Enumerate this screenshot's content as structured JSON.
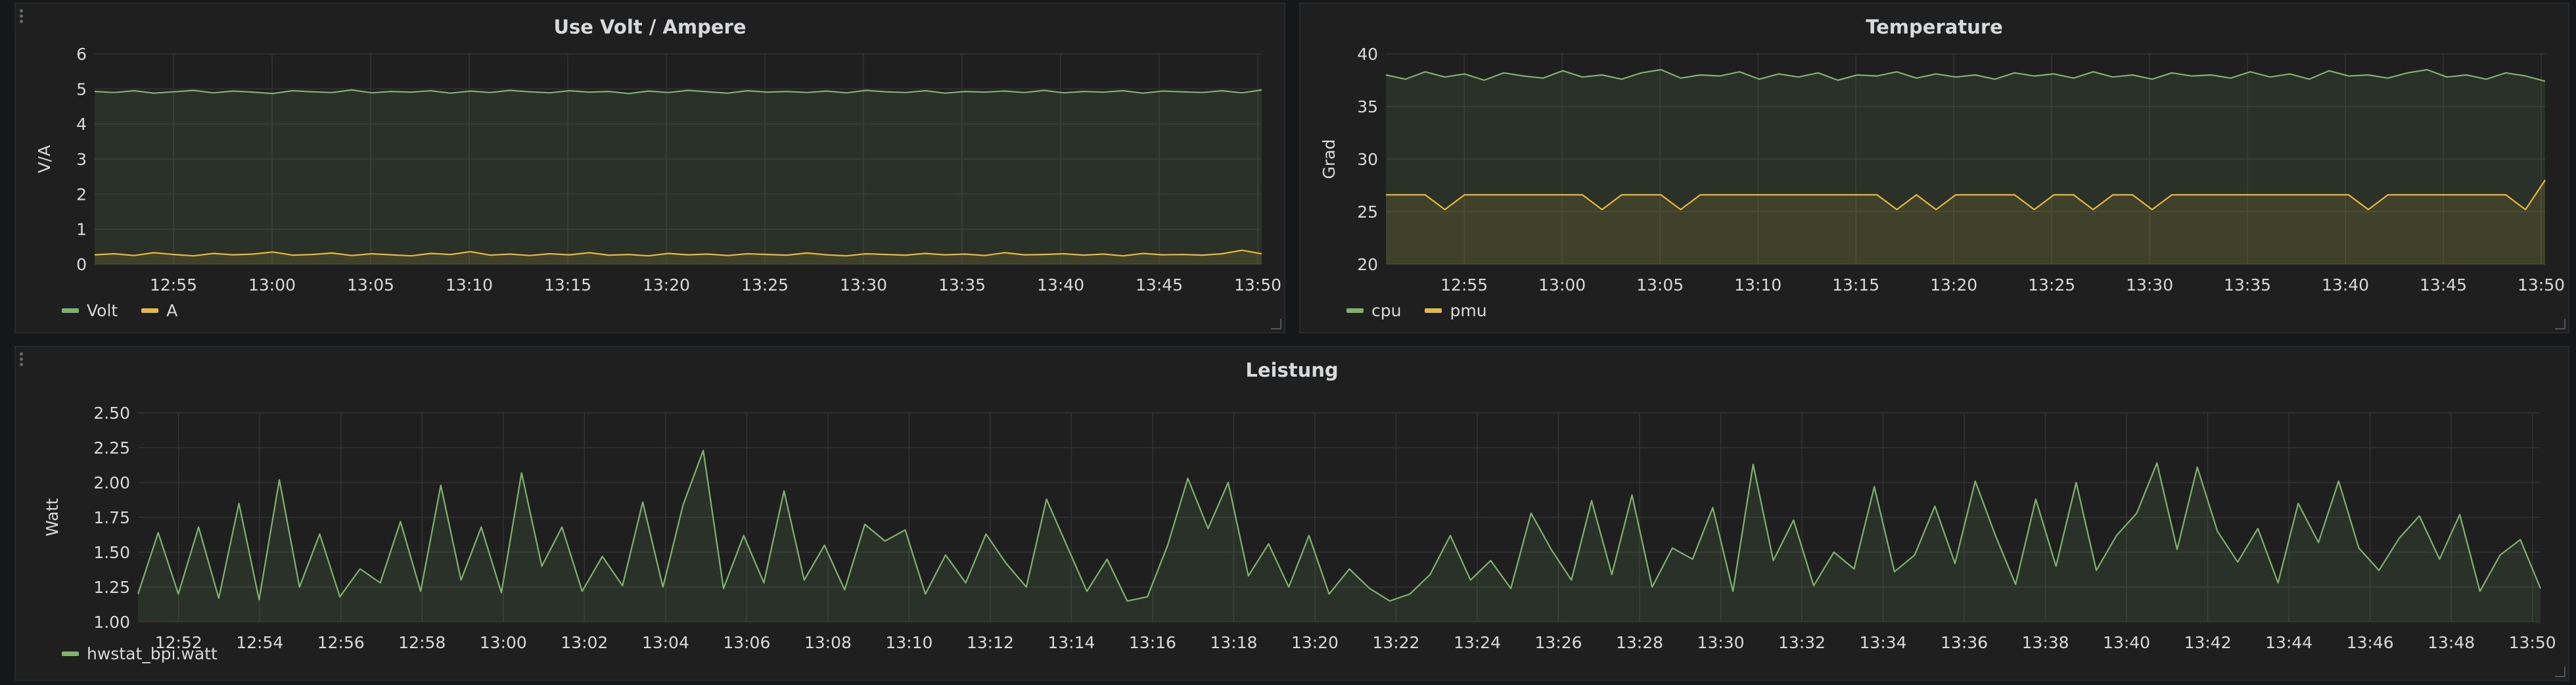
{
  "colors": {
    "green": "#7eb26d",
    "yellow": "#eab839",
    "grid": "#333333",
    "axis_text": "#d8d9da"
  },
  "panels": [
    {
      "title": "Use Volt / Ampere",
      "legend": [
        {
          "name": "Volt",
          "color": "#7eb26d"
        },
        {
          "name": "A",
          "color": "#eab839"
        }
      ]
    },
    {
      "title": "Temperature",
      "legend": [
        {
          "name": "cpu",
          "color": "#7eb26d"
        },
        {
          "name": "pmu",
          "color": "#eab839"
        }
      ]
    },
    {
      "title": "Leistung",
      "legend": [
        {
          "name": "hwstat_bpi.watt",
          "color": "#7eb26d"
        }
      ]
    }
  ],
  "chart_data": [
    {
      "type": "line",
      "title": "Use Volt / Ampere",
      "ylabel": "V/A",
      "ylim": [
        0,
        6
      ],
      "yticks": [
        0,
        1,
        2,
        3,
        4,
        5,
        6
      ],
      "xlim": [
        "12:51",
        "13:50"
      ],
      "xticks": [
        "12:55",
        "13:00",
        "13:05",
        "13:10",
        "13:15",
        "13:20",
        "13:25",
        "13:30",
        "13:35",
        "13:40",
        "13:45",
        "13:50"
      ],
      "grid": true,
      "legend_position": "bottom-left",
      "series": [
        {
          "name": "Volt",
          "color": "#7eb26d",
          "fill": true,
          "x_start": "12:51",
          "x_end": "13:50",
          "values": [
            4.93,
            4.9,
            4.95,
            4.88,
            4.92,
            4.96,
            4.89,
            4.94,
            4.91,
            4.87,
            4.95,
            4.92,
            4.9,
            4.97,
            4.89,
            4.93,
            4.91,
            4.95,
            4.88,
            4.94,
            4.9,
            4.96,
            4.92,
            4.89,
            4.95,
            4.91,
            4.93,
            4.87,
            4.94,
            4.9,
            4.96,
            4.92,
            4.88,
            4.95,
            4.91,
            4.93,
            4.9,
            4.94,
            4.89,
            4.96,
            4.92,
            4.9,
            4.95,
            4.88,
            4.93,
            4.91,
            4.94,
            4.9,
            4.96,
            4.89,
            4.93,
            4.91,
            4.95,
            4.88,
            4.94,
            4.92,
            4.9,
            4.95,
            4.89,
            4.97
          ]
        },
        {
          "name": "A",
          "color": "#eab839",
          "fill": true,
          "x_start": "12:51",
          "x_end": "13:50",
          "values": [
            0.27,
            0.3,
            0.25,
            0.33,
            0.28,
            0.24,
            0.31,
            0.27,
            0.29,
            0.35,
            0.26,
            0.28,
            0.32,
            0.25,
            0.3,
            0.27,
            0.24,
            0.31,
            0.28,
            0.36,
            0.26,
            0.29,
            0.25,
            0.3,
            0.27,
            0.33,
            0.26,
            0.28,
            0.24,
            0.31,
            0.27,
            0.29,
            0.25,
            0.3,
            0.28,
            0.26,
            0.32,
            0.27,
            0.24,
            0.3,
            0.28,
            0.26,
            0.31,
            0.27,
            0.29,
            0.25,
            0.33,
            0.27,
            0.28,
            0.3,
            0.26,
            0.29,
            0.24,
            0.31,
            0.27,
            0.28,
            0.26,
            0.3,
            0.4,
            0.3
          ]
        }
      ]
    },
    {
      "type": "line",
      "title": "Temperature",
      "ylabel": "Grad",
      "ylim": [
        20,
        40
      ],
      "yticks": [
        20,
        25,
        30,
        35,
        40
      ],
      "xlim": [
        "12:51",
        "13:50"
      ],
      "xticks": [
        "12:55",
        "13:00",
        "13:05",
        "13:10",
        "13:15",
        "13:20",
        "13:25",
        "13:30",
        "13:35",
        "13:40",
        "13:45",
        "13:50"
      ],
      "grid": true,
      "legend_position": "bottom-left",
      "series": [
        {
          "name": "cpu",
          "color": "#7eb26d",
          "fill": true,
          "x_start": "12:51",
          "x_end": "13:50",
          "values": [
            38.0,
            37.6,
            38.3,
            37.8,
            38.1,
            37.5,
            38.2,
            37.9,
            37.7,
            38.4,
            37.8,
            38.0,
            37.6,
            38.2,
            38.5,
            37.7,
            38.0,
            37.9,
            38.3,
            37.6,
            38.1,
            37.8,
            38.2,
            37.5,
            38.0,
            37.9,
            38.3,
            37.7,
            38.1,
            37.8,
            38.0,
            37.6,
            38.2,
            37.9,
            38.1,
            37.7,
            38.3,
            37.8,
            38.0,
            37.6,
            38.2,
            37.9,
            38.0,
            37.7,
            38.3,
            37.8,
            38.1,
            37.6,
            38.4,
            37.9,
            38.0,
            37.7,
            38.2,
            38.5,
            37.8,
            38.0,
            37.6,
            38.2,
            37.9,
            37.4
          ]
        },
        {
          "name": "pmu",
          "color": "#eab839",
          "fill": true,
          "x_start": "12:51",
          "x_end": "13:50",
          "values": [
            26.6,
            26.6,
            26.6,
            25.2,
            26.6,
            26.6,
            26.6,
            26.6,
            26.6,
            26.6,
            26.6,
            25.2,
            26.6,
            26.6,
            26.6,
            25.2,
            26.6,
            26.6,
            26.6,
            26.6,
            26.6,
            26.6,
            26.6,
            26.6,
            26.6,
            26.6,
            25.2,
            26.6,
            25.2,
            26.6,
            26.6,
            26.6,
            26.6,
            25.2,
            26.6,
            26.6,
            25.2,
            26.6,
            26.6,
            25.2,
            26.6,
            26.6,
            26.6,
            26.6,
            26.6,
            26.6,
            26.6,
            26.6,
            26.6,
            26.6,
            25.2,
            26.6,
            26.6,
            26.6,
            26.6,
            26.6,
            26.6,
            26.6,
            25.2,
            28.0
          ]
        }
      ]
    },
    {
      "type": "line",
      "title": "Leistung",
      "ylabel": "Watt",
      "ylim": [
        1.0,
        2.5
      ],
      "yticks": [
        "1.00",
        "1.25",
        "1.50",
        "1.75",
        "2.00",
        "2.25",
        "2.50"
      ],
      "xlim": [
        "12:51",
        "13:50"
      ],
      "xticks": [
        "12:52",
        "12:54",
        "12:56",
        "12:58",
        "13:00",
        "13:02",
        "13:04",
        "13:06",
        "13:08",
        "13:10",
        "13:12",
        "13:14",
        "13:16",
        "13:18",
        "13:20",
        "13:22",
        "13:24",
        "13:26",
        "13:28",
        "13:30",
        "13:32",
        "13:34",
        "13:36",
        "13:38",
        "13:40",
        "13:42",
        "13:44",
        "13:46",
        "13:48",
        "13:50"
      ],
      "grid": true,
      "legend_position": "bottom-left",
      "series": [
        {
          "name": "hwstat_bpi.watt",
          "color": "#7eb26d",
          "fill": true,
          "x_start": "12:51",
          "x_end": "13:50",
          "values": [
            1.2,
            1.64,
            1.2,
            1.68,
            1.17,
            1.85,
            1.16,
            2.02,
            1.25,
            1.63,
            1.18,
            1.38,
            1.28,
            1.72,
            1.22,
            1.98,
            1.3,
            1.68,
            1.21,
            2.07,
            1.4,
            1.68,
            1.22,
            1.47,
            1.26,
            1.86,
            1.25,
            1.84,
            2.23,
            1.24,
            1.62,
            1.28,
            1.94,
            1.3,
            1.55,
            1.23,
            1.7,
            1.58,
            1.66,
            1.2,
            1.48,
            1.28,
            1.63,
            1.42,
            1.25,
            1.88,
            1.55,
            1.22,
            1.45,
            1.15,
            1.18,
            1.55,
            2.03,
            1.67,
            2.0,
            1.33,
            1.56,
            1.25,
            1.62,
            1.2,
            1.38,
            1.24,
            1.15,
            1.2,
            1.34,
            1.62,
            1.3,
            1.44,
            1.24,
            1.78,
            1.52,
            1.3,
            1.87,
            1.34,
            1.91,
            1.25,
            1.53,
            1.45,
            1.82,
            1.22,
            2.13,
            1.44,
            1.73,
            1.26,
            1.5,
            1.38,
            1.97,
            1.36,
            1.48,
            1.83,
            1.42,
            2.01,
            1.62,
            1.27,
            1.88,
            1.4,
            2.0,
            1.37,
            1.62,
            1.78,
            2.14,
            1.52,
            2.11,
            1.65,
            1.43,
            1.67,
            1.28,
            1.85,
            1.57,
            2.01,
            1.53,
            1.37,
            1.6,
            1.76,
            1.45,
            1.77,
            1.22,
            1.48,
            1.59,
            1.24
          ]
        }
      ]
    }
  ]
}
